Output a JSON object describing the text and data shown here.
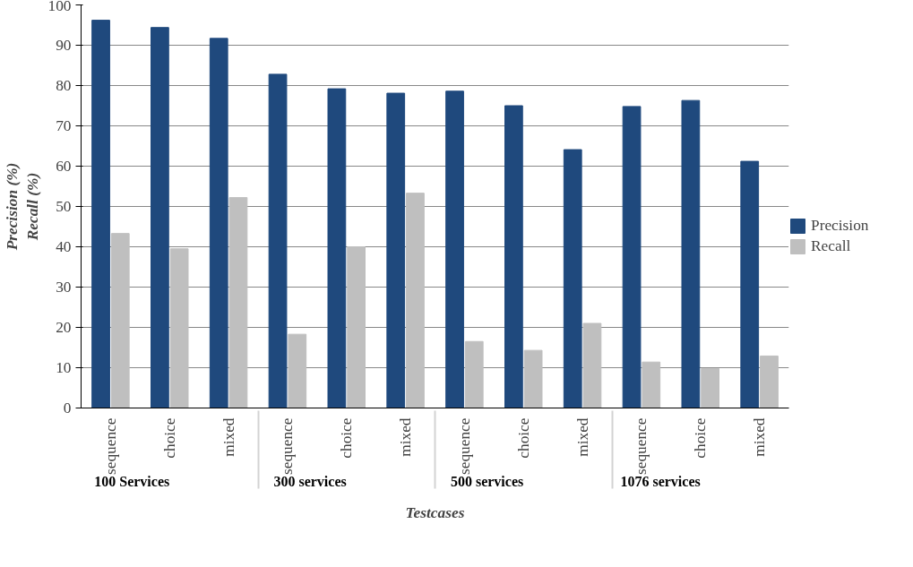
{
  "chart_data": {
    "type": "bar",
    "xlabel": "Testcases",
    "ylabel": "Precision (%)\nRecall (%)",
    "categories": [
      "sequence",
      "choice",
      "mixed",
      "sequence",
      "choice",
      "mixed",
      "sequence",
      "choice",
      "mixed",
      "sequence",
      "choice",
      "mixed"
    ],
    "annotations": [
      "100 Services",
      "300 services",
      "500 services",
      "1076 services"
    ],
    "series": [
      {
        "name": "Precision",
        "color": "#1f497d",
        "values": [
          96.2,
          94.4,
          91.7,
          82.8,
          79.2,
          78.1,
          78.6,
          75.0,
          64.1,
          74.8,
          76.3,
          61.2
        ]
      },
      {
        "name": "Recall",
        "color": "#bfbfbf",
        "values": [
          43.3,
          39.5,
          52.2,
          18.3,
          40.0,
          53.3,
          16.5,
          14.3,
          21.0,
          11.4,
          9.8,
          12.9
        ]
      }
    ],
    "ylim": [
      0,
      100
    ],
    "yticks": [
      0,
      10,
      20,
      30,
      40,
      50,
      60,
      70,
      80,
      90,
      100
    ],
    "grid": "y",
    "legend": "right"
  }
}
